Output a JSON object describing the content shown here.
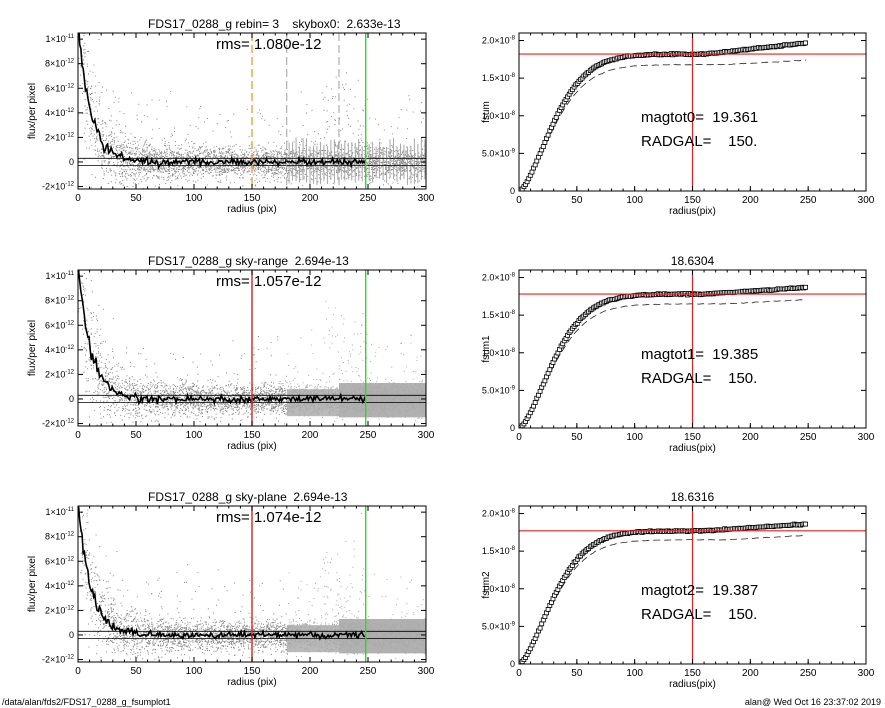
{
  "footer": {
    "path": "/data/alan/fds2/FDS17_0288_g_fsumplot1",
    "stamp": "alan@  Wed Oct 16 23:37:02 2019"
  },
  "colors": {
    "axis": "#000000",
    "scatter": "#888888",
    "sky_points": "#a8a8a8",
    "profile": "#000000",
    "red_line": "#e02020",
    "green_line": "#20e020",
    "orange_line": "#f0a040",
    "dashed_grey": "#888888"
  },
  "chart_data": [
    {
      "type": "scatter",
      "panel": "profile-1",
      "title": "FDS17_0288_g rebin= 3    skybox0:  2.633e-13",
      "annotation": "rms= 1.080e-12",
      "xlabel": "radius (pix)",
      "ylabel": "flux/per pixel",
      "xlim": [
        0,
        300
      ],
      "ylim": [
        -2.2e-12,
        1.05e-11
      ],
      "xticks": [
        "0",
        "50",
        "100",
        "150",
        "200",
        "250",
        "300"
      ],
      "yticks": [
        {
          "value": -2e-12,
          "label": "-2×10⁻¹²"
        },
        {
          "value": 0,
          "label": "0"
        },
        {
          "value": 2e-12,
          "label": "2×10⁻¹²"
        },
        {
          "value": 4e-12,
          "label": "4×10⁻¹²"
        },
        {
          "value": 6e-12,
          "label": "6×10⁻¹²"
        },
        {
          "value": 8e-12,
          "label": "8×10⁻¹²"
        },
        {
          "value": 1e-11,
          "label": "1×10⁻¹¹"
        }
      ],
      "sky_band": [
        -3e-13,
        3e-13
      ],
      "profile": {
        "amp": 1.1e-11,
        "scale": 11,
        "sky": 0
      },
      "vlines": [
        {
          "x": 150,
          "color": "orange",
          "style": "dashed"
        },
        {
          "x": 180,
          "color": "grey",
          "style": "dashed"
        },
        {
          "x": 225,
          "color": "grey",
          "style": "dashed"
        },
        {
          "x": 248,
          "color": "green",
          "style": "solid"
        }
      ],
      "sky_region_style": "errorbars"
    },
    {
      "type": "line",
      "panel": "growth-1",
      "title": "",
      "annotation_lines": [
        "magtot0=  19.361",
        "RADGAL=    150."
      ],
      "xlabel": "radius(pix)",
      "ylabel": "fsum",
      "xlim": [
        0,
        300
      ],
      "ylim": [
        0,
        2.1e-08
      ],
      "xticks": [
        "0",
        "50",
        "100",
        "150",
        "200",
        "250",
        "300"
      ],
      "yticks": [
        {
          "value": 0,
          "label": "0"
        },
        {
          "value": 5e-09,
          "label": "5.0×10⁻⁹"
        },
        {
          "value": 1e-08,
          "label": "1.0×10⁻⁸"
        },
        {
          "value": 1.5e-08,
          "label": "1.5×10⁻⁸"
        },
        {
          "value": 2e-08,
          "label": "2.0×10⁻⁸"
        }
      ],
      "hline": 1.82e-08,
      "vline": 150,
      "curve_plateau": 1.82e-08,
      "curve_tail_rise": 1.5e-09,
      "dashed_plateau": 1.68e-08
    },
    {
      "type": "scatter",
      "panel": "profile-2",
      "title": "FDS17_0288_g sky-range  2.694e-13",
      "annotation": "rms= 1.057e-12",
      "xlabel": "radius (pix)",
      "ylabel": "flux/per pixel",
      "xlim": [
        0,
        300
      ],
      "ylim": [
        -2.2e-12,
        1.05e-11
      ],
      "xticks": [
        "0",
        "50",
        "100",
        "150",
        "200",
        "250",
        "300"
      ],
      "yticks": [
        {
          "value": -2e-12,
          "label": "-2×10⁻¹²"
        },
        {
          "value": 0,
          "label": "0"
        },
        {
          "value": 2e-12,
          "label": "2×10⁻¹²"
        },
        {
          "value": 4e-12,
          "label": "4×10⁻¹²"
        },
        {
          "value": 6e-12,
          "label": "6×10⁻¹²"
        },
        {
          "value": 8e-12,
          "label": "8×10⁻¹²"
        },
        {
          "value": 1e-11,
          "label": "1×10⁻¹¹"
        }
      ],
      "sky_band": [
        -3e-13,
        3e-13
      ],
      "profile": {
        "amp": 1.1e-11,
        "scale": 11,
        "sky": 0
      },
      "vlines": [
        {
          "x": 150,
          "color": "red",
          "style": "solid"
        },
        {
          "x": 248,
          "color": "green",
          "style": "solid"
        }
      ],
      "sky_region_style": "blocks"
    },
    {
      "type": "line",
      "panel": "growth-2",
      "title": "18.6304",
      "annotation_lines": [
        "magtot1=  19.385",
        "RADGAL=    150."
      ],
      "xlabel": "radius(pix)",
      "ylabel": "fsum1",
      "xlim": [
        0,
        300
      ],
      "ylim": [
        0,
        2.1e-08
      ],
      "xticks": [
        "0",
        "50",
        "100",
        "150",
        "200",
        "250",
        "300"
      ],
      "yticks": [
        {
          "value": 0,
          "label": "0"
        },
        {
          "value": 5e-09,
          "label": "5.0×10⁻⁹"
        },
        {
          "value": 1e-08,
          "label": "1.0×10⁻⁸"
        },
        {
          "value": 1.5e-08,
          "label": "1.5×10⁻⁸"
        },
        {
          "value": 2e-08,
          "label": "2.0×10⁻⁸"
        }
      ],
      "hline": 1.78e-08,
      "vline": 150,
      "curve_plateau": 1.78e-08,
      "curve_tail_rise": 9e-10,
      "dashed_plateau": 1.65e-08
    },
    {
      "type": "scatter",
      "panel": "profile-3",
      "title": "FDS17_0288_g sky-plane  2.694e-13",
      "annotation": "rms= 1.074e-12",
      "xlabel": "radius (pix)",
      "ylabel": "flux/per pixel",
      "xlim": [
        0,
        300
      ],
      "ylim": [
        -2.2e-12,
        1.05e-11
      ],
      "xticks": [
        "0",
        "50",
        "100",
        "150",
        "200",
        "250",
        "300"
      ],
      "yticks": [
        {
          "value": -2e-12,
          "label": "-2×10⁻¹²"
        },
        {
          "value": 0,
          "label": "0"
        },
        {
          "value": 2e-12,
          "label": "2×10⁻¹²"
        },
        {
          "value": 4e-12,
          "label": "4×10⁻¹²"
        },
        {
          "value": 6e-12,
          "label": "6×10⁻¹²"
        },
        {
          "value": 8e-12,
          "label": "8×10⁻¹²"
        },
        {
          "value": 1e-11,
          "label": "1×10⁻¹¹"
        }
      ],
      "sky_band": [
        -3e-13,
        3e-13
      ],
      "profile": {
        "amp": 1.1e-11,
        "scale": 11,
        "sky": 0
      },
      "vlines": [
        {
          "x": 150,
          "color": "red",
          "style": "solid"
        },
        {
          "x": 248,
          "color": "green",
          "style": "solid"
        }
      ],
      "sky_region_style": "blocks"
    },
    {
      "type": "line",
      "panel": "growth-3",
      "title": "18.6316",
      "annotation_lines": [
        "magtot2=  19.387",
        "RADGAL=    150."
      ],
      "xlabel": "radius(pix)",
      "ylabel": "fsum2",
      "xlim": [
        0,
        300
      ],
      "ylim": [
        0,
        2.1e-08
      ],
      "xticks": [
        "0",
        "50",
        "100",
        "150",
        "200",
        "250",
        "300"
      ],
      "yticks": [
        {
          "value": 0,
          "label": "0"
        },
        {
          "value": 5e-09,
          "label": "5.0×10⁻⁹"
        },
        {
          "value": 1e-08,
          "label": "1.0×10⁻⁸"
        },
        {
          "value": 1.5e-08,
          "label": "1.5×10⁻⁸"
        },
        {
          "value": 2e-08,
          "label": "2.0×10⁻⁸"
        }
      ],
      "hline": 1.77e-08,
      "vline": 150,
      "curve_plateau": 1.77e-08,
      "curve_tail_rise": 9e-10,
      "dashed_plateau": 1.65e-08
    }
  ]
}
